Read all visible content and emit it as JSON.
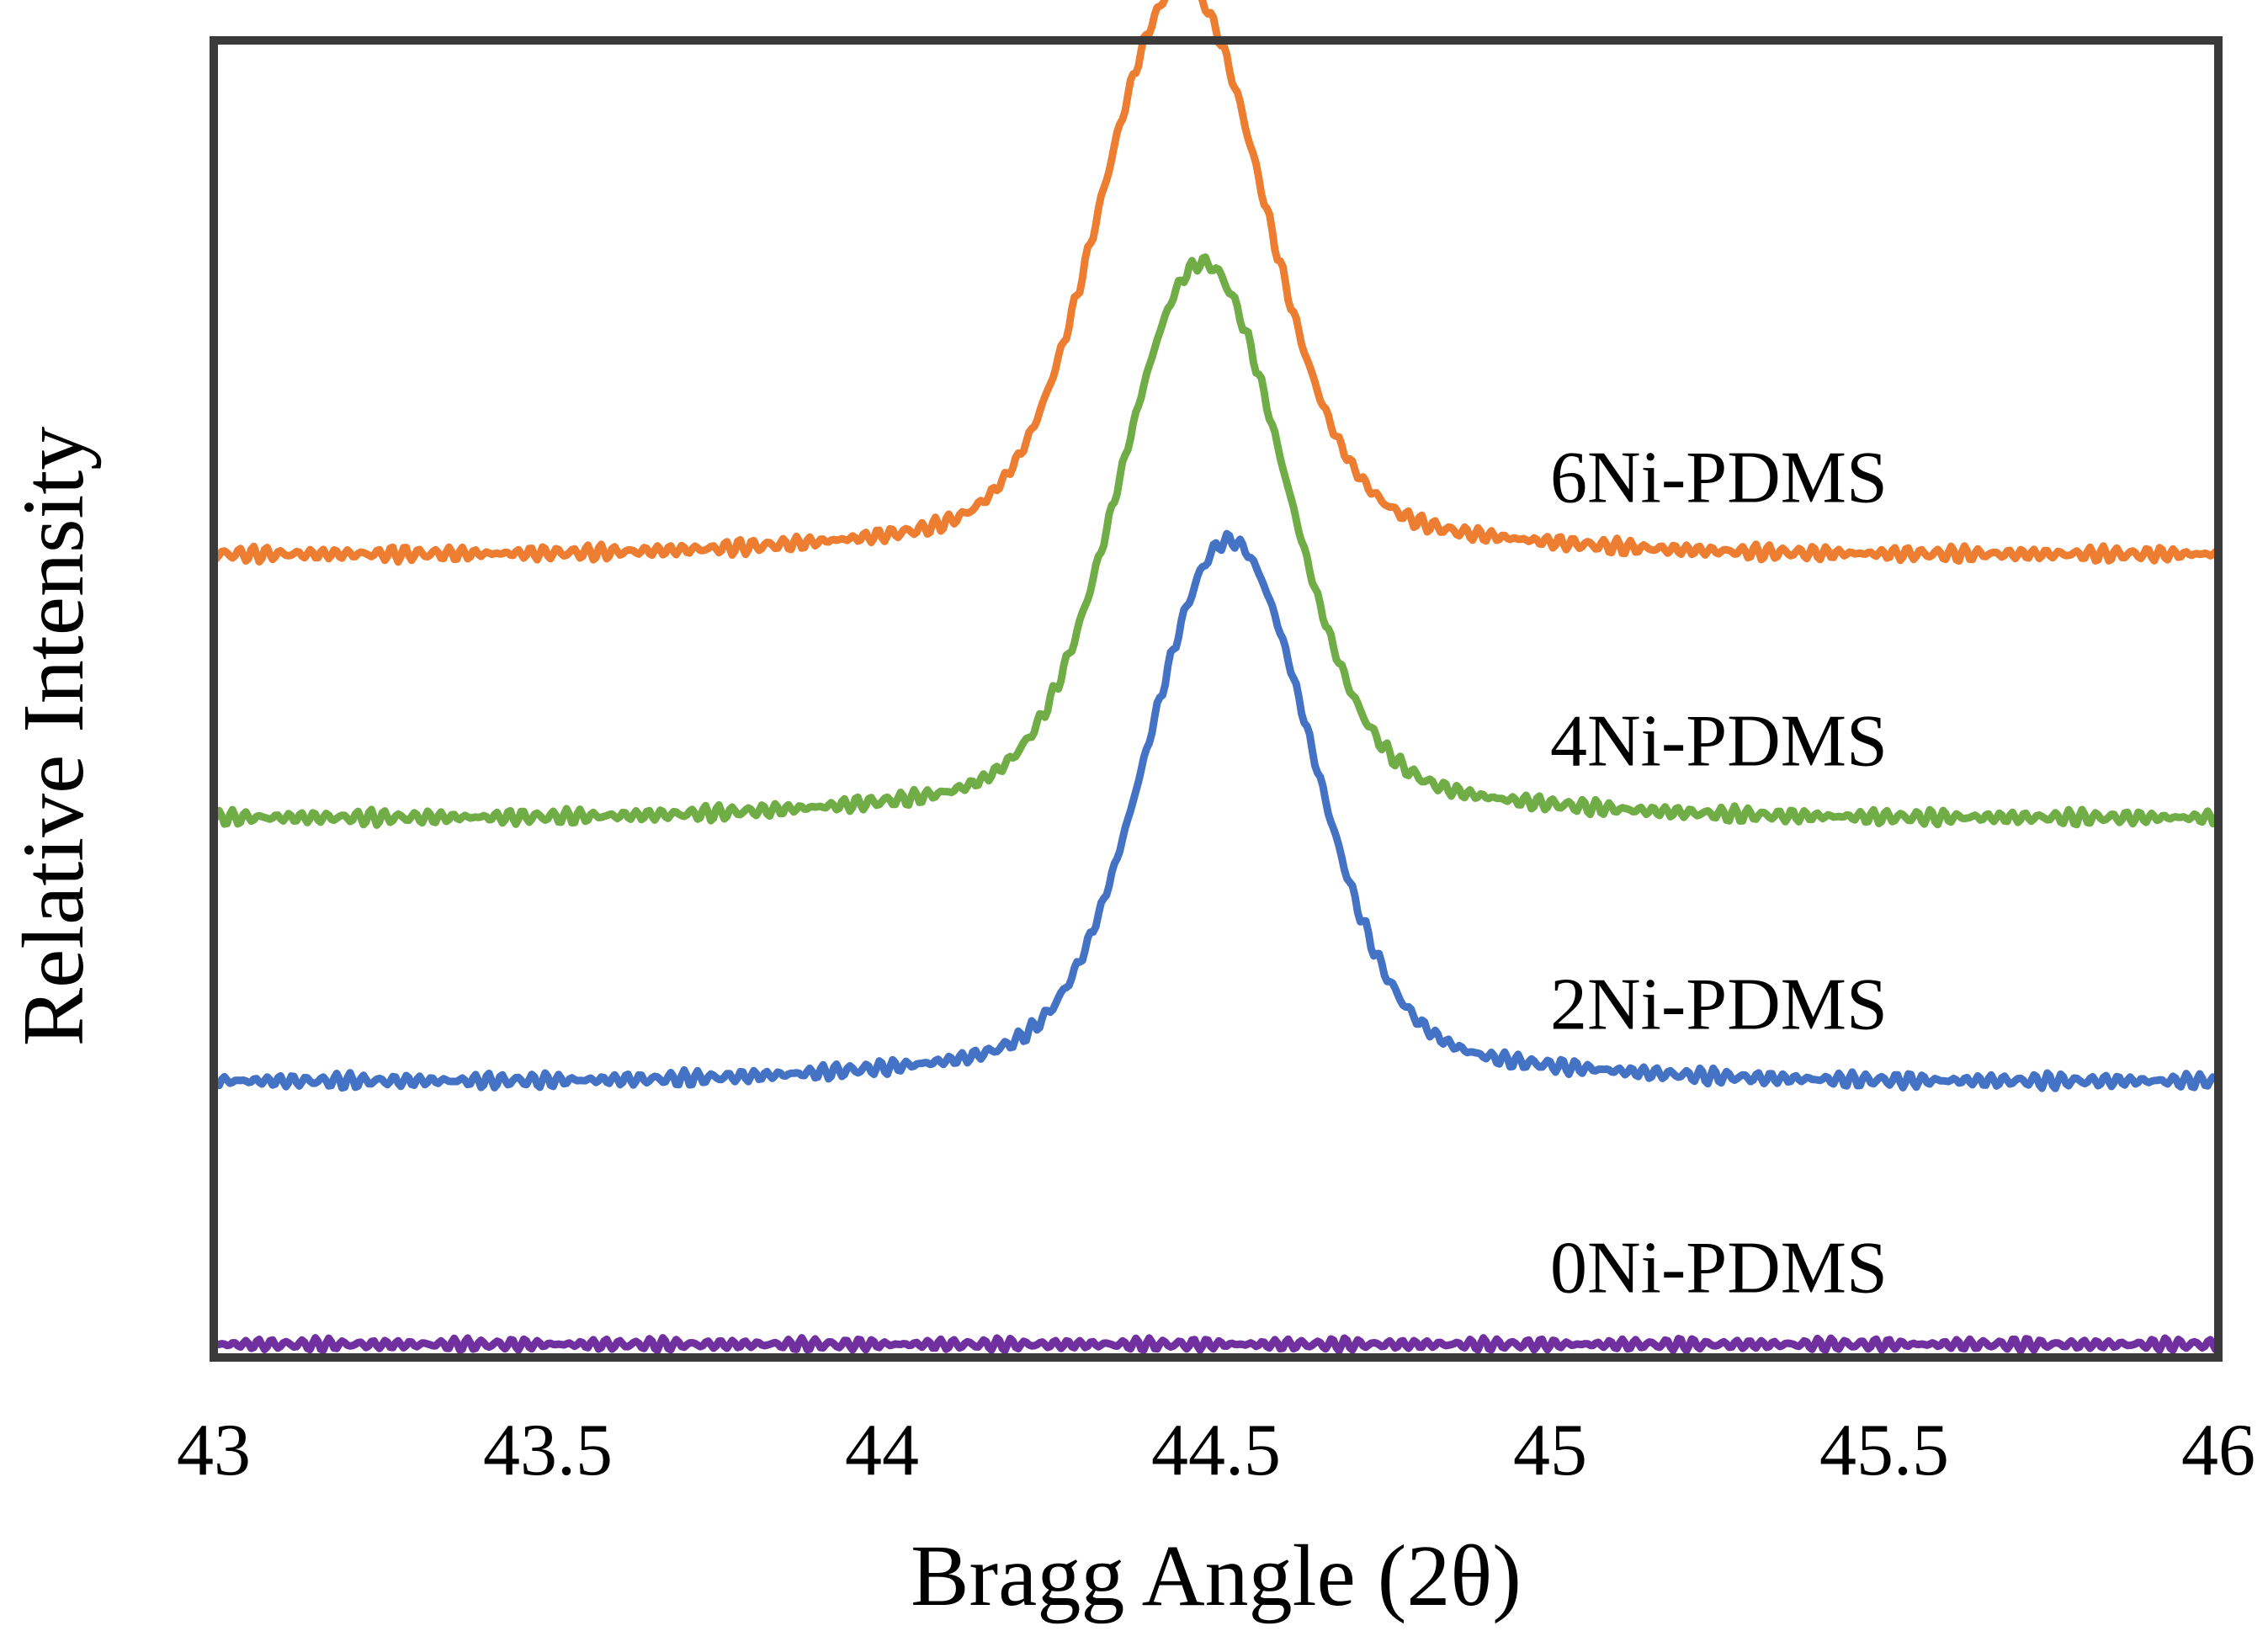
{
  "chart_data": {
    "type": "line",
    "title": "",
    "xlabel": "Bragg Angle (2θ)",
    "ylabel": "Relative Intensity",
    "xlim": [
      43,
      46
    ],
    "ylim": [
      0,
      100
    ],
    "x_ticks": [
      43,
      43.5,
      44,
      44.5,
      45,
      45.5,
      46
    ],
    "x_tick_labels": [
      "43",
      "43.5",
      "44",
      "44.5",
      "45",
      "45.5",
      "46"
    ],
    "grid": false,
    "legend": "inline-right",
    "series": [
      {
        "name": "0Ni-PDMS",
        "color": "#7030A0",
        "baseline": 1,
        "peak_center": 44.5,
        "peak_height": 0,
        "peak_width": 0.12
      },
      {
        "name": "2Ni-PDMS",
        "color": "#4472C4",
        "baseline": 21,
        "peak_center": 44.52,
        "peak_height": 38,
        "peak_width": 0.12
      },
      {
        "name": "4Ni-PDMS",
        "color": "#70AD47",
        "baseline": 41,
        "peak_center": 44.48,
        "peak_height": 39,
        "peak_width": 0.12
      },
      {
        "name": "6Ni-PDMS",
        "color": "#ED7D31",
        "baseline": 61,
        "peak_center": 44.45,
        "peak_height": 40,
        "peak_width": 0.12
      }
    ]
  }
}
